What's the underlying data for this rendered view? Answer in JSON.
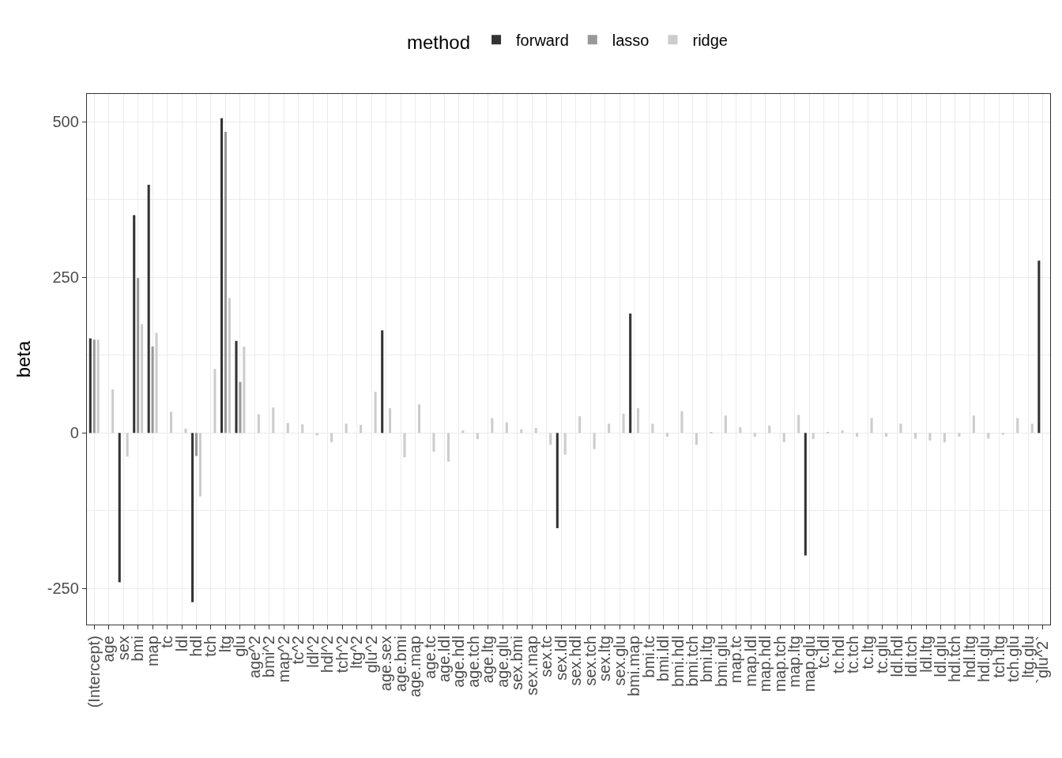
{
  "chart_data": {
    "type": "bar",
    "ylabel": "beta",
    "legend_title": "method",
    "legend": "top",
    "grid": true,
    "categories": [
      "(Intercept)",
      "age",
      "sex",
      "bmi",
      "map",
      "tc",
      "ldl",
      "hdl",
      "tch",
      "ltg",
      "glu",
      "age^2",
      "bmi^2",
      "map^2",
      "tc^2",
      "ldl^2",
      "hdl^2",
      "tch^2",
      "ltg^2",
      "glu^2",
      "age.sex",
      "age.bmi",
      "age.map",
      "age.tc",
      "age.ldl",
      "age.hdl",
      "age.tch",
      "age.ltg",
      "age.glu",
      "sex.bmi",
      "sex.map",
      "sex.tc",
      "sex.ldl",
      "sex.hdl",
      "sex.tch",
      "sex.ltg",
      "sex.glu",
      "bmi.map",
      "bmi.tc",
      "bmi.ldl",
      "bmi.hdl",
      "bmi.tch",
      "bmi.ltg",
      "bmi.glu",
      "map.tc",
      "map.ldl",
      "map.hdl",
      "map.tch",
      "map.ltg",
      "map.glu",
      "tc.ldl",
      "tc.hdl",
      "tc.tch",
      "tc.ltg",
      "tc.glu",
      "ldl.hdl",
      "ldl.tch",
      "ldl.ltg",
      "ldl.glu",
      "hdl.tch",
      "hdl.ltg",
      "hdl.glu",
      "tch.ltg",
      "tch.glu",
      "ltg.glu",
      "`glu^2`"
    ],
    "series": [
      {
        "name": "forward",
        "color": "#333333",
        "values": [
          152,
          null,
          -240,
          350,
          399,
          null,
          null,
          -272,
          null,
          506,
          148,
          null,
          null,
          null,
          null,
          null,
          null,
          null,
          null,
          null,
          165,
          null,
          null,
          null,
          null,
          null,
          null,
          null,
          null,
          null,
          null,
          null,
          -153,
          null,
          null,
          null,
          null,
          192,
          null,
          null,
          null,
          null,
          null,
          null,
          null,
          null,
          null,
          null,
          null,
          -197,
          null,
          null,
          null,
          null,
          null,
          null,
          null,
          null,
          null,
          null,
          null,
          null,
          null,
          null,
          null,
          277
        ]
      },
      {
        "name": "lasso",
        "color": "#989898",
        "values": [
          150,
          null,
          null,
          249,
          139,
          null,
          null,
          -37,
          null,
          484,
          82,
          null,
          null,
          null,
          null,
          null,
          null,
          null,
          null,
          null,
          null,
          null,
          null,
          null,
          null,
          null,
          null,
          null,
          null,
          null,
          null,
          null,
          null,
          null,
          null,
          null,
          null,
          null,
          null,
          null,
          null,
          null,
          null,
          null,
          null,
          null,
          null,
          null,
          null,
          null,
          null,
          null,
          null,
          null,
          null,
          null,
          null,
          null,
          null,
          null,
          null,
          null,
          null,
          null,
          null,
          null
        ]
      },
      {
        "name": "ridge",
        "color": "#cccccc",
        "values": [
          150,
          70,
          -38,
          175,
          161,
          34,
          7,
          -102,
          103,
          217,
          139,
          30,
          41,
          16,
          14,
          -4,
          -15,
          15,
          13,
          66,
          40,
          -39,
          46,
          -30,
          -46,
          4,
          -10,
          24,
          17,
          6,
          8,
          -19,
          -35,
          27,
          -26,
          15,
          31,
          40,
          15,
          -6,
          35,
          -19,
          1,
          28,
          9,
          -6,
          12,
          -15,
          29,
          -10,
          1,
          4,
          -6,
          24,
          -6,
          15,
          -9,
          -12,
          -15,
          -6,
          28,
          -9,
          -3,
          24,
          15,
          null
        ]
      }
    ],
    "ylim": [
      -308,
      545
    ],
    "yticks": [
      -250,
      0,
      250,
      500
    ]
  }
}
